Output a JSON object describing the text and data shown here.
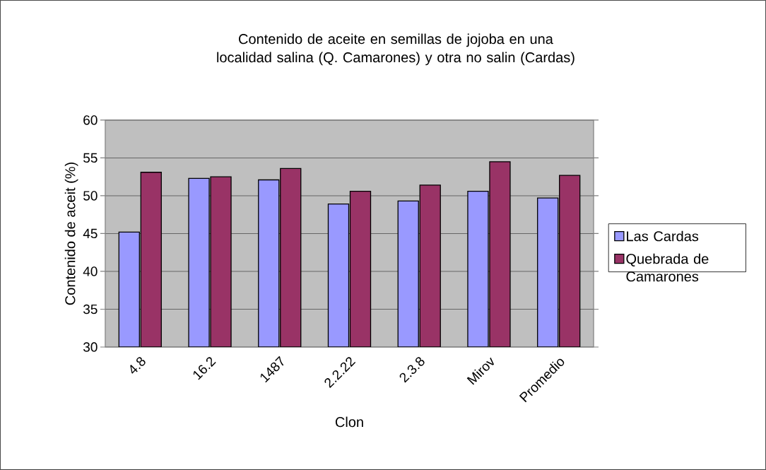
{
  "chart_data": {
    "type": "bar",
    "title": "Contenido de aceite en semillas de jojoba en una localidad salina (Q. Camarones) y otra no salin (Cardas)",
    "xlabel": "Clon",
    "ylabel": "Contenido de aceit (%)",
    "categories": [
      "4.8",
      "16.2",
      "1487",
      "2.2.22",
      "2.3.8",
      "Mirov",
      "Promedio"
    ],
    "series": [
      {
        "name": "Las Cardas",
        "color": "#9999ff",
        "values": [
          45.2,
          52.3,
          52.1,
          48.9,
          49.3,
          50.6,
          49.7
        ]
      },
      {
        "name": "Quebrada de Camarones",
        "color": "#993366",
        "values": [
          53.1,
          52.5,
          53.6,
          50.6,
          51.4,
          54.5,
          52.7
        ]
      }
    ],
    "ylim": [
      30,
      60
    ],
    "yticks": [
      30,
      35,
      40,
      45,
      50,
      55,
      60
    ],
    "grid": "y",
    "legend": "right"
  }
}
